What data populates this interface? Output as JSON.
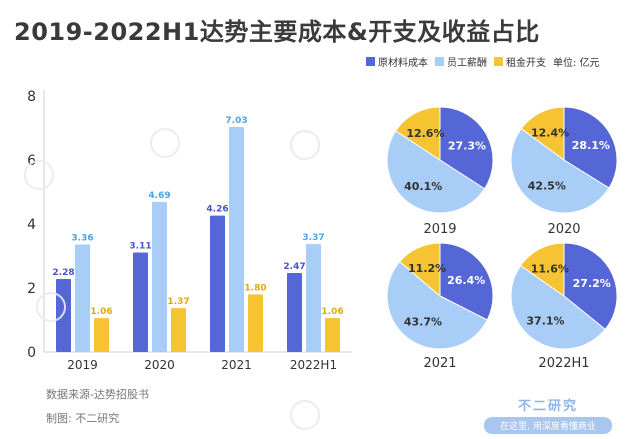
{
  "title": "2019-2022H1达势主要成本&开支及收益占比",
  "unit": "单位: 亿元",
  "colors": {
    "raw_materials": "#5566d6",
    "staff": "#a8cdf7",
    "rent": "#f6c332"
  },
  "chart_data": [
    {
      "type": "bar",
      "categories": [
        "2019",
        "2020",
        "2021",
        "2022H1"
      ],
      "series": [
        {
          "name": "原材料成本",
          "values": [
            2.28,
            3.11,
            4.26,
            2.47
          ]
        },
        {
          "name": "员工薪酬",
          "values": [
            3.36,
            4.69,
            7.03,
            3.37
          ]
        },
        {
          "name": "租金开支",
          "values": [
            1.06,
            1.37,
            1.8,
            1.06
          ]
        }
      ],
      "data_labels": [
        [
          "2.28",
          "3.11",
          "4.26",
          "2.47"
        ],
        [
          "3.36",
          "4.69",
          "7.03",
          "3.37"
        ],
        [
          "1.06",
          "1.37",
          "1.80",
          "1.06"
        ]
      ],
      "yticks": [
        "0",
        "2",
        "4",
        "6",
        "8"
      ],
      "ylim": [
        0,
        8
      ],
      "grid": false,
      "legend": "top-right",
      "unit": "单位: 亿元"
    },
    {
      "type": "pie",
      "year": "2019",
      "labels": [
        "原材料成本",
        "员工薪酬",
        "租金开支"
      ],
      "values": [
        27.3,
        40.1,
        12.6
      ],
      "value_labels": [
        "27.3%",
        "40.1%",
        "12.6%"
      ]
    },
    {
      "type": "pie",
      "year": "2020",
      "labels": [
        "原材料成本",
        "员工薪酬",
        "租金开支"
      ],
      "values": [
        28.1,
        42.5,
        12.4
      ],
      "value_labels": [
        "28.1%",
        "42.5%",
        "12.4%"
      ]
    },
    {
      "type": "pie",
      "year": "2021",
      "labels": [
        "原材料成本",
        "员工薪酬",
        "租金开支"
      ],
      "values": [
        26.4,
        43.7,
        11.2
      ],
      "value_labels": [
        "26.4%",
        "43.7%",
        "11.2%"
      ]
    },
    {
      "type": "pie",
      "year": "2022H1",
      "labels": [
        "原材料成本",
        "员工薪酬",
        "租金开支"
      ],
      "values": [
        27.2,
        37.1,
        11.6
      ],
      "value_labels": [
        "27.2%",
        "37.1%",
        "11.6%"
      ]
    }
  ],
  "footer": {
    "source": "数据来源-达势招股书",
    "maker": "制图: 不二研究"
  },
  "brand": {
    "name": "不二研究",
    "slogan": "在这里, 用深度看懂商业"
  }
}
